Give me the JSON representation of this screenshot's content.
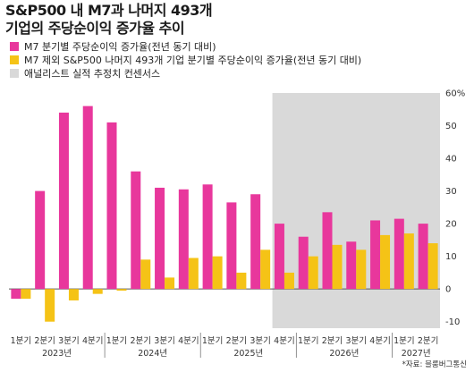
{
  "title_lines": [
    "S&P500 내 M7과 나머지 493개",
    "기업의 주당순이익 증가율 추이"
  ],
  "colors": {
    "m7": "#e8379c",
    "rest": "#f5c316",
    "consensus": "#d9d9d9",
    "gridline": "#bfbfbf"
  },
  "legend": [
    {
      "label": "M7 분기별 주당순이익 증가율(전년 동기 대비)",
      "color_key": "m7"
    },
    {
      "label": "M7 제외 S&P500 나머지 493개 기업 분기별 주당순이익 증가율(전년 동기 대비)",
      "color_key": "rest"
    },
    {
      "label": "애널리스트 실적 추정치 컨센서스",
      "color_key": "consensus"
    }
  ],
  "source": "*자료: 블룸버그통신",
  "chart_data": {
    "type": "bar",
    "categories": [
      "1분기",
      "2분기",
      "3분기",
      "4분기",
      "1분기",
      "2분기",
      "3분기",
      "4분기",
      "1분기",
      "2분기",
      "3분기",
      "4분기",
      "1분기",
      "2분기",
      "3분기",
      "4분기",
      "1분기",
      "2분기"
    ],
    "year_labels": [
      {
        "label": "2023년",
        "start": 0,
        "end": 3
      },
      {
        "label": "2024년",
        "start": 4,
        "end": 7
      },
      {
        "label": "2025년",
        "start": 8,
        "end": 11
      },
      {
        "label": "2026년",
        "start": 12,
        "end": 15
      },
      {
        "label": "2027년",
        "start": 16,
        "end": 17
      }
    ],
    "series": [
      {
        "name": "M7 분기별 주당순이익 증가율(전년 동기 대비)",
        "values": [
          -3,
          30,
          54,
          56,
          51,
          36,
          31,
          30.5,
          32,
          26.5,
          29,
          20,
          16,
          23.5,
          14.5,
          21,
          21.5,
          20
        ]
      },
      {
        "name": "M7 제외 S&P500 나머지 493개 기업 분기별 주당순이익 증가율(전년 동기 대비)",
        "values": [
          -3,
          -10,
          -3.5,
          -1.5,
          -0.5,
          9,
          3.5,
          9.5,
          10,
          5,
          12,
          5,
          10,
          13.5,
          12,
          16.5,
          17,
          14
        ]
      }
    ],
    "consensus_start_index": 11,
    "ylim": [
      -12,
      60
    ],
    "yticks": [
      -10,
      0,
      10,
      20,
      30,
      40,
      50,
      60
    ],
    "ytick_labels": [
      "-10",
      "0",
      "10",
      "20",
      "30",
      "40",
      "50",
      "60%"
    ],
    "legend_position": "top-left",
    "grid": false
  }
}
